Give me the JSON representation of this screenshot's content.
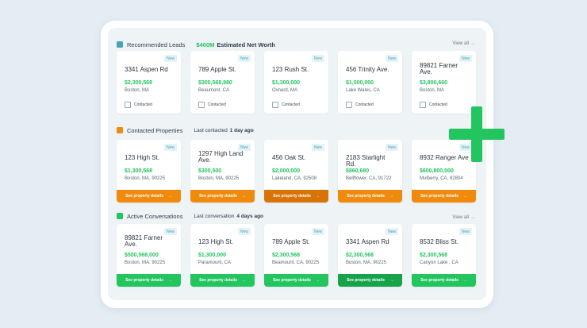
{
  "colors": {
    "teal": "#4aa3b5",
    "orange": "#f08a0c",
    "green": "#22c55e"
  },
  "sections": [
    {
      "title": "Recommended Leads",
      "highlight": "$400M",
      "subtitle": "Estimated Net Worth",
      "view_all": "View all",
      "cards": [
        {
          "badge": "New",
          "address": "3341 Aspen Rd",
          "price": "$2,300,568",
          "location": "Boston, MA",
          "checkbox": "Contacted"
        },
        {
          "badge": "New",
          "address": "789 Apple St.",
          "price": "$300,568,980",
          "location": "Beaumont, CA",
          "checkbox": "Contacted"
        },
        {
          "badge": "New",
          "address": "123 Rush St.",
          "price": "$1,300,000",
          "location": "Oxnard, MA",
          "checkbox": "Contacted"
        },
        {
          "badge": "New",
          "address": "456 Trinity Ave.",
          "price": "$1,000,000",
          "location": "Lake Wales, CA",
          "checkbox": "Contacted"
        },
        {
          "badge": "New",
          "address": "89821 Farner Ave.",
          "price": "$3,800,660",
          "location": "Boston, MA",
          "checkbox": "Contacted"
        }
      ]
    },
    {
      "title": "Contacted Properties",
      "subtitle": "Last contacted",
      "subtitle_bold": "1 day ago",
      "cards": [
        {
          "badge": "New",
          "address": "123 High St.",
          "price": "$1,300,568",
          "location": "Boston, MA, 90225",
          "button": "See property details"
        },
        {
          "badge": "New",
          "address": "1297 High Land Ave.",
          "price": "$300,500",
          "location": "Boston, MA, 90225",
          "button": "See property details"
        },
        {
          "badge": "New",
          "address": "456 Oak St.",
          "price": "$2,000,000",
          "location": "Lakeland, CA, 92508",
          "button": "See property details"
        },
        {
          "badge": "New",
          "address": "2183 Starlight Rd.",
          "price": "$860,680",
          "location": "Bellflower, CA, 91722",
          "button": "See property details"
        },
        {
          "badge": "New",
          "address": "8932 Ranger Ave",
          "price": "$600,800,000",
          "location": "Mulberry, CA, 92804",
          "button": "See property details"
        }
      ]
    },
    {
      "title": "Active Conversations",
      "subtitle": "Last conversation",
      "subtitle_bold": "4 days ago",
      "view_all": "View all",
      "cards": [
        {
          "badge": "New",
          "address": "89821 Farner Ave.",
          "price": "$500,568,000",
          "location": "Boston, MA, 90225",
          "button": "See property details"
        },
        {
          "badge": "New",
          "address": "123 High St.",
          "price": "$1,300,000",
          "location": "Paramount, CA",
          "button": "See property details"
        },
        {
          "badge": "New",
          "address": "789 Apple St.",
          "price": "$2,300,568",
          "location": "Beamount, CA, 90225",
          "button": "See property details"
        },
        {
          "badge": "New",
          "address": "3341 Aspen Rd",
          "price": "$2,300,568",
          "location": "Boston, MA, 90225",
          "button": "See property details"
        },
        {
          "badge": "New",
          "address": "8532 Bliss St.",
          "price": "$2,300,568",
          "location": "Canyon Lake , CA",
          "button": "See property details"
        }
      ]
    }
  ]
}
